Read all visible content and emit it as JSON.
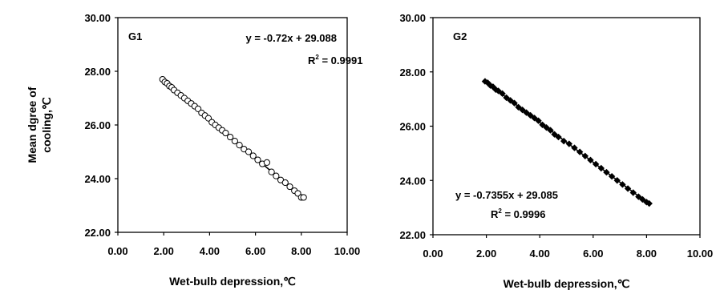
{
  "chart_data": [
    {
      "type": "scatter",
      "panel_label": "G1",
      "marker": "open-circle",
      "xlabel": "Wet-bulb depression,℃",
      "ylabel": [
        "Mean dgree of",
        "cooling,℃"
      ],
      "xlim": [
        0,
        10
      ],
      "ylim": [
        22,
        30
      ],
      "xticks": [
        "0.00",
        "2.00",
        "4.00",
        "6.00",
        "8.00",
        "10.00"
      ],
      "yticks": [
        "22.00",
        "24.00",
        "26.00",
        "28.00",
        "30.00"
      ],
      "grid": false,
      "trendline": {
        "slope": -0.72,
        "intercept": 29.088,
        "x_range": [
          1.9,
          8.1
        ]
      },
      "equation": "y = -0.72x + 29.088",
      "r2_label": "R",
      "r2_value": " = 0.9991",
      "x": [
        1.95,
        2.05,
        2.15,
        2.25,
        2.35,
        2.45,
        2.6,
        2.75,
        2.9,
        3.05,
        3.2,
        3.35,
        3.5,
        3.65,
        3.8,
        3.95,
        4.1,
        4.25,
        4.4,
        4.55,
        4.7,
        4.9,
        5.1,
        5.3,
        5.5,
        5.7,
        5.9,
        6.1,
        6.3,
        6.5,
        6.7,
        6.9,
        7.1,
        7.3,
        7.5,
        7.7,
        7.85,
        8.0,
        8.1
      ],
      "y": [
        27.7,
        27.6,
        27.55,
        27.45,
        27.4,
        27.3,
        27.2,
        27.1,
        27.0,
        26.9,
        26.8,
        26.7,
        26.6,
        26.45,
        26.35,
        26.25,
        26.1,
        26.0,
        25.9,
        25.8,
        25.7,
        25.55,
        25.4,
        25.25,
        25.1,
        25.0,
        24.85,
        24.7,
        24.55,
        24.6,
        24.25,
        24.1,
        23.95,
        23.85,
        23.7,
        23.55,
        23.45,
        23.3,
        23.3
      ]
    },
    {
      "type": "scatter",
      "panel_label": "G2",
      "marker": "filled-diamond",
      "xlabel": "Wet-bulb depression,℃",
      "xlim": [
        0,
        10
      ],
      "ylim": [
        22,
        30
      ],
      "xticks": [
        "0.00",
        "2.00",
        "4.00",
        "6.00",
        "8.00",
        "10.00"
      ],
      "yticks": [
        "22.00",
        "24.00",
        "26.00",
        "28.00",
        "30.00"
      ],
      "grid": false,
      "trendline": {
        "slope": -0.7355,
        "intercept": 29.085,
        "x_range": [
          1.9,
          8.1
        ]
      },
      "equation": "y = -0.7355x + 29.085",
      "r2_label": "R",
      "r2_value": " = 0.9996",
      "x": [
        1.95,
        2.05,
        2.15,
        2.25,
        2.35,
        2.45,
        2.6,
        2.75,
        2.9,
        3.05,
        3.2,
        3.35,
        3.5,
        3.65,
        3.8,
        3.95,
        4.1,
        4.25,
        4.4,
        4.55,
        4.7,
        4.9,
        5.1,
        5.3,
        5.5,
        5.7,
        5.9,
        6.1,
        6.3,
        6.5,
        6.7,
        6.9,
        7.1,
        7.3,
        7.5,
        7.7,
        7.85,
        8.0,
        8.1
      ],
      "y": [
        27.65,
        27.6,
        27.5,
        27.45,
        27.35,
        27.3,
        27.2,
        27.05,
        26.95,
        26.85,
        26.7,
        26.6,
        26.5,
        26.4,
        26.3,
        26.2,
        26.05,
        25.95,
        25.85,
        25.7,
        25.6,
        25.45,
        25.35,
        25.2,
        25.05,
        24.9,
        24.75,
        24.6,
        24.45,
        24.3,
        24.15,
        24.0,
        23.85,
        23.7,
        23.55,
        23.4,
        23.3,
        23.2,
        23.15
      ]
    }
  ]
}
